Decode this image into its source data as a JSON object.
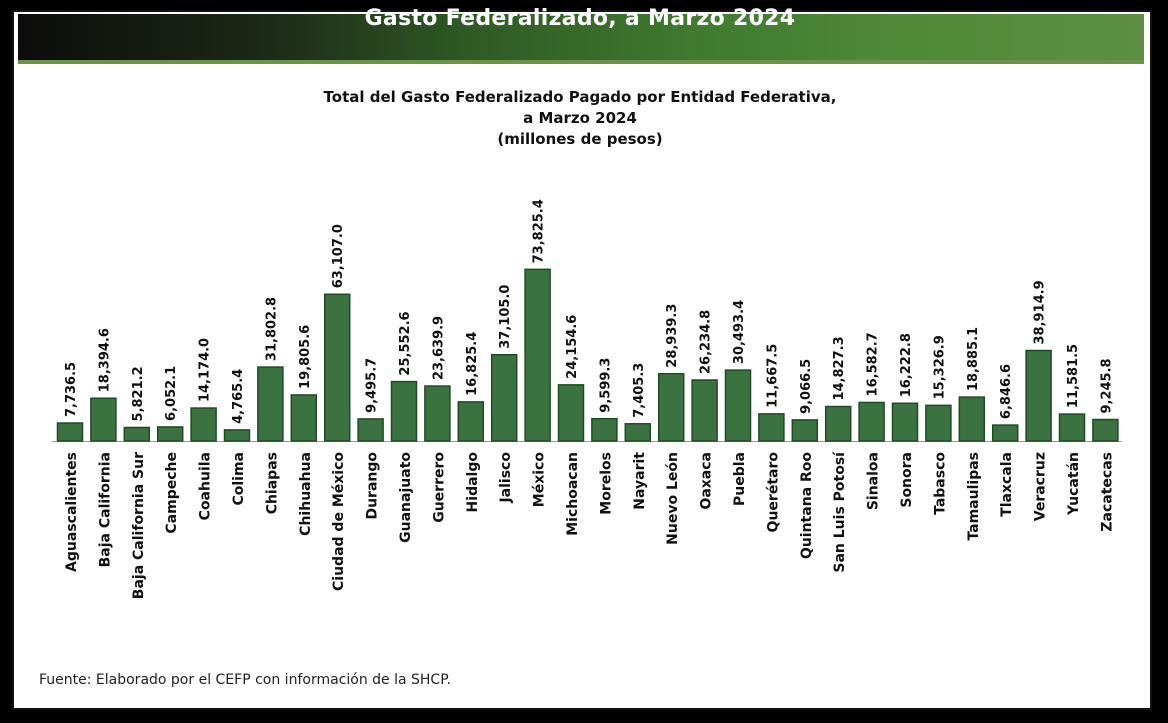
{
  "header": {
    "banner_title": "Gasto Federalizado, a Marzo 2024"
  },
  "chart_title_lines": [
    "Total del Gasto Federalizado Pagado por Entidad Federativa,",
    "a Marzo 2024",
    "(millones de pesos)"
  ],
  "source": "Fuente: Elaborado por el CEFP con información de la SHCP.",
  "colors": {
    "bar": "#3a7340",
    "bar_dark": "#1f4a25",
    "banner_green": "#3f7a2e"
  },
  "chart_data": {
    "type": "bar",
    "title": "Total del Gasto Federalizado Pagado por Entidad Federativa, a Marzo 2024 (millones de pesos)",
    "xlabel": "",
    "ylabel": "",
    "ylim": [
      0,
      80000
    ],
    "grid": false,
    "categories": [
      "Aguascalientes",
      "Baja California",
      "Baja California Sur",
      "Campeche",
      "Coahuila",
      "Colima",
      "Chiapas",
      "Chihuahua",
      "Ciudad de México",
      "Durango",
      "Guanajuato",
      "Guerrero",
      "Hidalgo",
      "Jalisco",
      "México",
      "Michoacan",
      "Morelos",
      "Nayarit",
      "Nuevo León",
      "Oaxaca",
      "Puebla",
      "Querétaro",
      "Quintana Roo",
      "San Luis Potosí",
      "Sinaloa",
      "Sonora",
      "Tabasco",
      "Tamaulipas",
      "Tlaxcala",
      "Veracruz",
      "Yucatán",
      "Zacatecas"
    ],
    "values": [
      7736.5,
      18394.6,
      5821.2,
      6052.1,
      14174.0,
      4765.4,
      31802.8,
      19805.6,
      63107.0,
      9495.7,
      25552.6,
      23639.9,
      16825.4,
      37105.0,
      73825.4,
      24154.6,
      9599.3,
      7405.3,
      28939.3,
      26234.8,
      30493.4,
      11667.5,
      9066.5,
      14827.3,
      16582.7,
      16222.8,
      15326.9,
      18885.1,
      6846.6,
      38914.9,
      11581.5,
      9245.8
    ],
    "labels": [
      "7,736.5",
      "18,394.6",
      "5,821.2",
      "6,052.1",
      "14,174.0",
      "4,765.4",
      "31,802.8",
      "19,805.6",
      "63,107.0",
      "9,495.7",
      "25,552.6",
      "23,639.9",
      "16,825.4",
      "37,105.0",
      "73,825.4",
      "24,154.6",
      "9,599.3",
      "7,405.3",
      "28,939.3",
      "26,234.8",
      "30,493.4",
      "11,667.5",
      "9,066.5",
      "14,827.3",
      "16,582.7",
      "16,222.8",
      "15,326.9",
      "18,885.1",
      "6,846.6",
      "38,914.9",
      "11,581.5",
      "9,245.8"
    ]
  }
}
